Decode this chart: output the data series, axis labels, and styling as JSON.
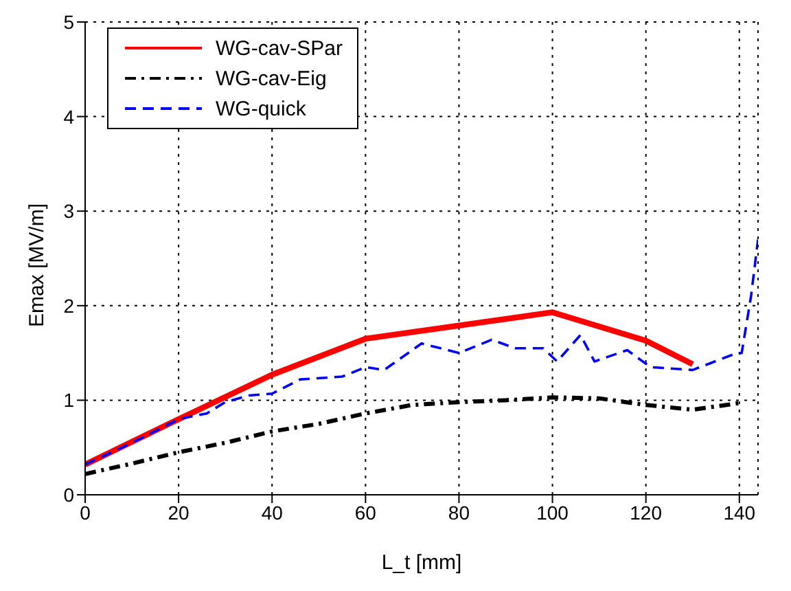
{
  "chart_data": {
    "type": "line",
    "xlabel": "L_t [mm]",
    "ylabel": "Emax [MV/m]",
    "xlim": [
      0,
      144
    ],
    "ylim": [
      0,
      5
    ],
    "xticks": [
      0,
      20,
      40,
      60,
      80,
      100,
      120,
      140
    ],
    "yticks": [
      0,
      1,
      2,
      3,
      4,
      5
    ],
    "grid": true,
    "legend": "top left",
    "series": [
      {
        "name": "WG-cav-SPar",
        "color": "#ff0000",
        "line_style": "solid",
        "x": [
          0,
          20,
          40,
          60,
          100,
          120,
          130
        ],
        "values": [
          0.32,
          0.8,
          1.27,
          1.65,
          1.93,
          1.63,
          1.38
        ]
      },
      {
        "name": "WG-cav-Eig",
        "color": "#000000",
        "line_style": "dashdot",
        "x": [
          0,
          10,
          20,
          30,
          40,
          50,
          60,
          70,
          80,
          90,
          100,
          110,
          120,
          130,
          140
        ],
        "values": [
          0.22,
          0.33,
          0.45,
          0.55,
          0.67,
          0.75,
          0.86,
          0.95,
          0.98,
          1.0,
          1.03,
          1.02,
          0.95,
          0.9,
          0.97
        ]
      },
      {
        "name": "WG-quick",
        "color": "#0000ff",
        "line_style": "dashed",
        "x": [
          0,
          10,
          20,
          26,
          30,
          35,
          40,
          46,
          55,
          60,
          64,
          72,
          80,
          87,
          92,
          98,
          101,
          106,
          109,
          116,
          121,
          130,
          139,
          140.5,
          142.5,
          144
        ],
        "values": [
          0.32,
          0.55,
          0.8,
          0.86,
          0.98,
          1.05,
          1.07,
          1.22,
          1.25,
          1.35,
          1.32,
          1.6,
          1.5,
          1.64,
          1.55,
          1.55,
          1.41,
          1.69,
          1.41,
          1.53,
          1.35,
          1.32,
          1.49,
          1.5,
          2.1,
          2.7
        ]
      }
    ]
  }
}
